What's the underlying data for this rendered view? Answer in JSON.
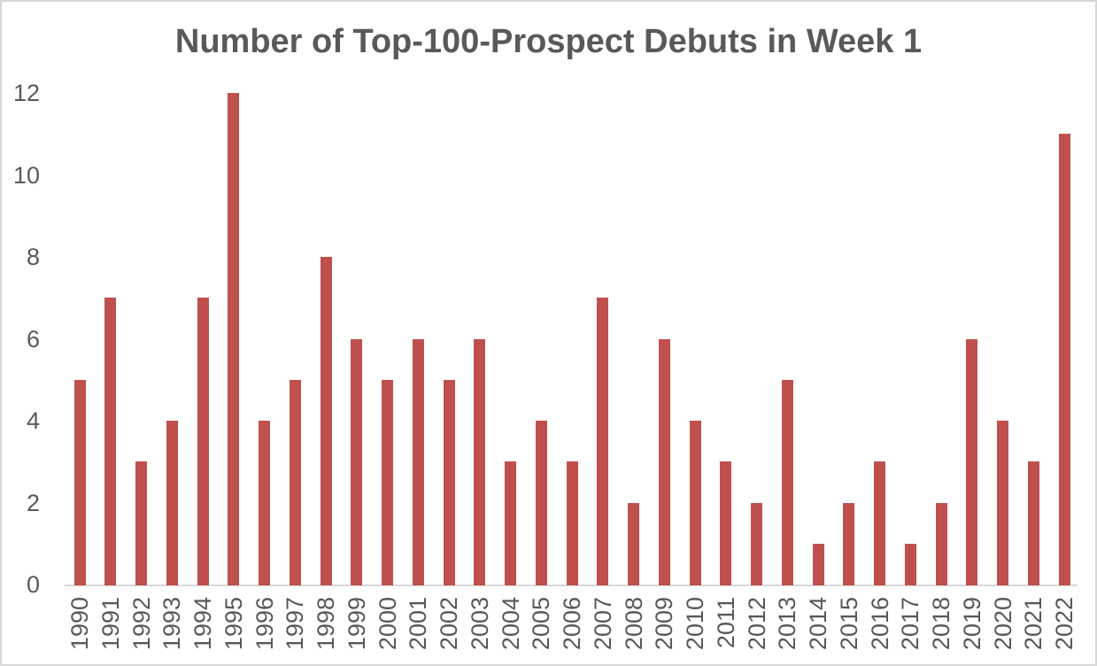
{
  "chart_data": {
    "type": "bar",
    "title": "Number of Top-100-Prospect Debuts in Week 1",
    "categories": [
      "1990",
      "1991",
      "1992",
      "1993",
      "1994",
      "1995",
      "1996",
      "1997",
      "1998",
      "1999",
      "2000",
      "2001",
      "2002",
      "2003",
      "2004",
      "2005",
      "2006",
      "2007",
      "2008",
      "2009",
      "2010",
      "2011",
      "2012",
      "2013",
      "2014",
      "2015",
      "2016",
      "2017",
      "2018",
      "2019",
      "2020",
      "2021",
      "2022"
    ],
    "values": [
      5,
      7,
      3,
      4,
      7,
      12,
      4,
      5,
      8,
      6,
      5,
      6,
      5,
      6,
      3,
      4,
      3,
      7,
      2,
      6,
      4,
      3,
      2,
      5,
      1,
      2,
      3,
      1,
      2,
      6,
      4,
      3,
      11
    ],
    "xlabel": "",
    "ylabel": "",
    "ylim": [
      0,
      12
    ],
    "yticks": [
      0,
      2,
      4,
      6,
      8,
      10,
      12
    ],
    "grid": false,
    "legend": false,
    "colors": {
      "bar": "#C0504D",
      "text": "#595959",
      "axis_line": "#D9D9D9",
      "frame_border": "#D7D7D7",
      "background": "#FFFFFF"
    }
  }
}
